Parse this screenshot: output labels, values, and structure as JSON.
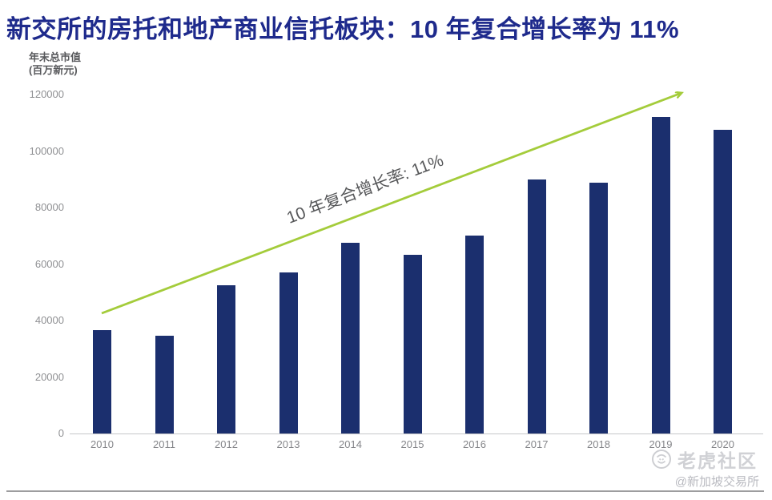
{
  "title": "新交所的房托和地产商业信托板块：10 年复合增长率为 11%",
  "chart_data": {
    "type": "bar",
    "categories": [
      "2010",
      "2011",
      "2012",
      "2013",
      "2014",
      "2015",
      "2016",
      "2017",
      "2018",
      "2019",
      "2020"
    ],
    "values": [
      36500,
      34600,
      52500,
      57000,
      67500,
      63200,
      70000,
      90000,
      88700,
      112000,
      107500
    ],
    "title": "新交所的房托和地产商业信托板块：10 年复合增长率为 11%",
    "ylabel_line1": "年末总市值",
    "ylabel_line2": "(百万新元)",
    "xlabel": "",
    "ylim": [
      0,
      120000
    ],
    "yticks": [
      0,
      20000,
      40000,
      60000,
      80000,
      100000,
      120000
    ],
    "grid": false,
    "legend": false,
    "annotation": "10 年复合增长率: 11%",
    "annotation_value": "11%",
    "colors": {
      "bar": "#1b2f6e",
      "arrow": "#a4cc3b",
      "title": "#1e2a8c",
      "axis_text": "#8f9093",
      "annotation_text": "#57585a"
    }
  },
  "watermark": {
    "brand": "老虎社区",
    "handle": "@新加坡交易所",
    "icon": "tiger-icon"
  }
}
